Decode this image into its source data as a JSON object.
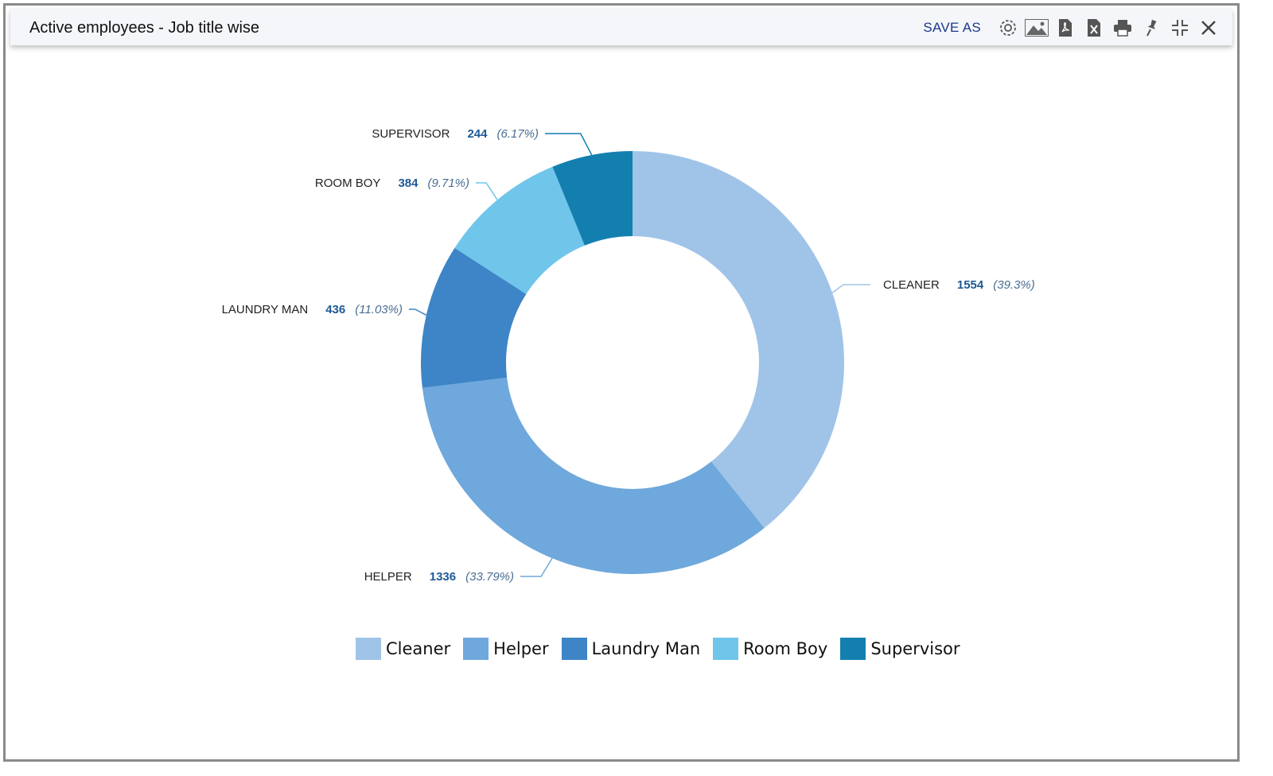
{
  "window": {
    "title": "Active employees - Job title wise",
    "save_as_label": "SAVE AS",
    "icons": [
      "gear-icon",
      "image-icon",
      "pdf-icon",
      "excel-icon",
      "print-icon",
      "pin-icon",
      "collapse-icon",
      "close-icon"
    ]
  },
  "chart_data": {
    "type": "pie",
    "subtype": "donut",
    "title": "Active employees - Job title wise",
    "categories": [
      "CLEANER",
      "HELPER",
      "LAUNDRY MAN",
      "ROOM BOY",
      "SUPERVISOR"
    ],
    "values": [
      1554,
      1336,
      436,
      384,
      244
    ],
    "percents": [
      "(39.3%)",
      "(33.79%)",
      "(11.03%)",
      "(9.71%)",
      "(6.17%)"
    ],
    "legend": [
      "Cleaner",
      "Helper",
      "Laundry Man",
      "Room Boy",
      "Supervisor"
    ],
    "legend_position": "bottom-center",
    "colors": [
      "#a0c4e8",
      "#6fa8dc",
      "#3d85c6",
      "#6fc5ea",
      "#137faf"
    ]
  }
}
